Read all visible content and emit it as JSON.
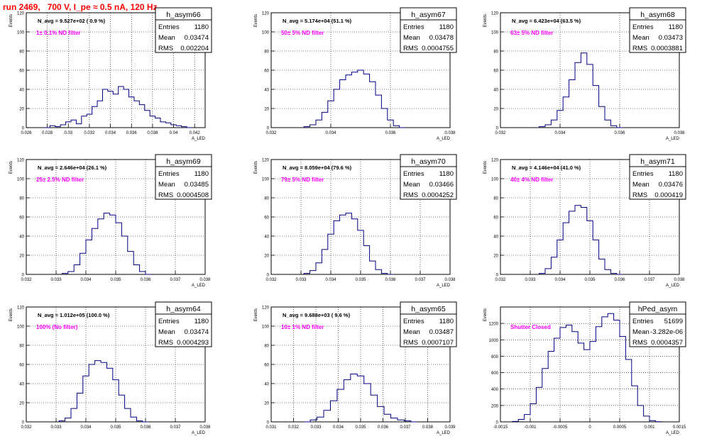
{
  "page_title": "run 2469,   700 V, I_pe ≈ 0.5 nA, 120 Hz",
  "colors": {
    "hist": "#000080",
    "annot": "#ff00ff",
    "title": "#ff0000",
    "grid": "#000000"
  },
  "y_axis_label": "Events",
  "x_axis_label": "A_LED",
  "stats_labels": {
    "entries": "Entries",
    "mean": "Mean",
    "rms": "RMS"
  },
  "chart_data": [
    {
      "type": "histogram",
      "name": "h_asym66",
      "navg": "N_avg = 9.527e+02 ( 0.9 %)",
      "note": "1± 0.1% ND filter",
      "entries": "1180",
      "mean": "0.03474",
      "rms": "0.002204",
      "xlim": [
        0.026,
        0.043
      ],
      "ylim": [
        0,
        120
      ],
      "xticks": [
        "0.026",
        "0.028",
        "0.03",
        "0.032",
        "0.034",
        "0.036",
        "0.038",
        "0.04",
        "0.042"
      ],
      "xtick_values": [
        0.026,
        0.028,
        0.03,
        0.032,
        0.034,
        0.036,
        0.038,
        0.04,
        0.042
      ],
      "yticks": [
        0,
        20,
        40,
        60,
        80,
        100,
        120
      ],
      "bins": [
        [
          0.028,
          0
        ],
        [
          0.0285,
          2
        ],
        [
          0.029,
          1
        ],
        [
          0.0295,
          3
        ],
        [
          0.03,
          6
        ],
        [
          0.0305,
          8
        ],
        [
          0.031,
          4
        ],
        [
          0.0315,
          12
        ],
        [
          0.032,
          14
        ],
        [
          0.0325,
          22
        ],
        [
          0.033,
          28
        ],
        [
          0.0335,
          40
        ],
        [
          0.034,
          38
        ],
        [
          0.0345,
          35
        ],
        [
          0.035,
          43
        ],
        [
          0.0355,
          40
        ],
        [
          0.036,
          32
        ],
        [
          0.0365,
          28
        ],
        [
          0.037,
          24
        ],
        [
          0.0375,
          18
        ],
        [
          0.038,
          12
        ],
        [
          0.0385,
          10
        ],
        [
          0.039,
          6
        ],
        [
          0.0395,
          5
        ],
        [
          0.04,
          3
        ],
        [
          0.0405,
          2
        ],
        [
          0.041,
          1
        ],
        [
          0.0415,
          0
        ]
      ]
    },
    {
      "type": "histogram",
      "name": "h_asym67",
      "navg": "N_avg = 5.174e+04 (51.1 %)",
      "note": "50± 5% ND filter",
      "entries": "1180",
      "mean": "0.03478",
      "rms": "0.0004755",
      "xlim": [
        0.032,
        0.038
      ],
      "ylim": [
        0,
        120
      ],
      "xticks": [
        "0.032",
        "0.034",
        "0.036",
        "0.038"
      ],
      "xtick_values": [
        0.032,
        0.034,
        0.036,
        0.038
      ],
      "yticks": [
        0,
        20,
        40,
        60,
        80,
        100,
        120
      ],
      "bins": [
        [
          0.0332,
          1
        ],
        [
          0.0334,
          3
        ],
        [
          0.0336,
          8
        ],
        [
          0.0338,
          16
        ],
        [
          0.034,
          28
        ],
        [
          0.0342,
          40
        ],
        [
          0.0344,
          50
        ],
        [
          0.0346,
          55
        ],
        [
          0.0348,
          58
        ],
        [
          0.035,
          60
        ],
        [
          0.0352,
          56
        ],
        [
          0.0354,
          48
        ],
        [
          0.0356,
          34
        ],
        [
          0.0358,
          20
        ],
        [
          0.036,
          8
        ],
        [
          0.0362,
          2
        ],
        [
          0.0364,
          0
        ]
      ]
    },
    {
      "type": "histogram",
      "name": "h_asym68",
      "navg": "N_avg = 6.423e+04 (63.5 %)",
      "note": "63± 5% ND filter",
      "entries": "1180",
      "mean": "0.03473",
      "rms": "0.0003881",
      "xlim": [
        0.032,
        0.038
      ],
      "ylim": [
        0,
        120
      ],
      "xticks": [
        "0.032",
        "0.034",
        "0.036",
        "0.038"
      ],
      "xtick_values": [
        0.032,
        0.034,
        0.036,
        0.038
      ],
      "yticks": [
        0,
        20,
        40,
        60,
        80,
        100,
        120
      ],
      "bins": [
        [
          0.0334,
          1
        ],
        [
          0.0336,
          3
        ],
        [
          0.0338,
          8
        ],
        [
          0.034,
          18
        ],
        [
          0.0342,
          32
        ],
        [
          0.0344,
          50
        ],
        [
          0.0346,
          68
        ],
        [
          0.0348,
          78
        ],
        [
          0.035,
          66
        ],
        [
          0.0352,
          44
        ],
        [
          0.0354,
          22
        ],
        [
          0.0356,
          8
        ],
        [
          0.0358,
          2
        ],
        [
          0.036,
          0
        ]
      ]
    },
    {
      "type": "histogram",
      "name": "h_asym69",
      "navg": "N_avg = 2.646e+04 (26.1 %)",
      "note": "25± 2.5% ND filter",
      "entries": "1180",
      "mean": "0.03485",
      "rms": "0.0004508",
      "xlim": [
        0.032,
        0.038
      ],
      "ylim": [
        0,
        120
      ],
      "xticks": [
        "0.032",
        "0.033",
        "0.034",
        "0.035",
        "0.036",
        "0.037",
        "0.038"
      ],
      "xtick_values": [
        0.032,
        0.033,
        0.034,
        0.035,
        0.036,
        0.037,
        0.038
      ],
      "yticks": [
        0,
        20,
        40,
        60,
        80,
        100,
        120
      ],
      "bins": [
        [
          0.0333,
          1
        ],
        [
          0.0335,
          3
        ],
        [
          0.0337,
          10
        ],
        [
          0.0339,
          22
        ],
        [
          0.0341,
          36
        ],
        [
          0.0343,
          48
        ],
        [
          0.0345,
          58
        ],
        [
          0.0347,
          64
        ],
        [
          0.0349,
          62
        ],
        [
          0.0351,
          54
        ],
        [
          0.0353,
          40
        ],
        [
          0.0355,
          24
        ],
        [
          0.0357,
          10
        ],
        [
          0.0359,
          3
        ],
        [
          0.0361,
          0
        ]
      ]
    },
    {
      "type": "histogram",
      "name": "h_asym70",
      "navg": "N_avg = 8.059e+04 (79.6 %)",
      "note": "79± 5% ND filter",
      "entries": "1180",
      "mean": "0.03466",
      "rms": "0.0004252",
      "xlim": [
        0.032,
        0.038
      ],
      "ylim": [
        0,
        120
      ],
      "xticks": [
        "0.032",
        "0.033",
        "0.034",
        "0.035",
        "0.036",
        "0.037",
        "0.038"
      ],
      "xtick_values": [
        0.032,
        0.033,
        0.034,
        0.035,
        0.036,
        0.037,
        0.038
      ],
      "yticks": [
        0,
        20,
        40,
        60,
        80,
        100,
        120
      ],
      "bins": [
        [
          0.0332,
          1
        ],
        [
          0.0334,
          4
        ],
        [
          0.0336,
          12
        ],
        [
          0.0338,
          26
        ],
        [
          0.034,
          42
        ],
        [
          0.0342,
          56
        ],
        [
          0.0344,
          62
        ],
        [
          0.0346,
          64
        ],
        [
          0.0348,
          58
        ],
        [
          0.035,
          46
        ],
        [
          0.0352,
          30
        ],
        [
          0.0354,
          14
        ],
        [
          0.0356,
          5
        ],
        [
          0.0358,
          1
        ],
        [
          0.036,
          0
        ]
      ]
    },
    {
      "type": "histogram",
      "name": "h_asym71",
      "navg": "N_avg = 4.146e+04 (41.0 %)",
      "note": "40± 4% ND filter",
      "entries": "1180",
      "mean": "0.03476",
      "rms": "0.000419",
      "xlim": [
        0.032,
        0.038
      ],
      "ylim": [
        0,
        120
      ],
      "xticks": [
        "0.032",
        "0.033",
        "0.034",
        "0.035",
        "0.036",
        "0.037",
        "0.038"
      ],
      "xtick_values": [
        0.032,
        0.033,
        0.034,
        0.035,
        0.036,
        0.037,
        0.038
      ],
      "yticks": [
        0,
        20,
        40,
        60,
        80,
        100,
        120
      ],
      "bins": [
        [
          0.0334,
          1
        ],
        [
          0.0336,
          6
        ],
        [
          0.0338,
          18
        ],
        [
          0.034,
          36
        ],
        [
          0.0342,
          54
        ],
        [
          0.0344,
          66
        ],
        [
          0.0346,
          72
        ],
        [
          0.0348,
          70
        ],
        [
          0.035,
          56
        ],
        [
          0.0352,
          36
        ],
        [
          0.0354,
          16
        ],
        [
          0.0356,
          5
        ],
        [
          0.0358,
          1
        ],
        [
          0.036,
          0
        ]
      ]
    },
    {
      "type": "histogram",
      "name": "h_asym64",
      "navg": "N_avg = 1.012e+05 (100.0 %)",
      "note": "100% (No filter)",
      "entries": "1180",
      "mean": "0.03474",
      "rms": "0.0004293",
      "xlim": [
        0.032,
        0.038
      ],
      "ylim": [
        0,
        120
      ],
      "xticks": [
        "0.032",
        "0.033",
        "0.034",
        "0.035",
        "0.036",
        "0.037",
        "0.038"
      ],
      "xtick_values": [
        0.032,
        0.033,
        0.034,
        0.035,
        0.036,
        0.037,
        0.038
      ],
      "yticks": [
        0,
        20,
        40,
        60,
        80,
        100,
        120
      ],
      "bins": [
        [
          0.0332,
          1
        ],
        [
          0.0334,
          4
        ],
        [
          0.0336,
          14
        ],
        [
          0.0338,
          30
        ],
        [
          0.034,
          48
        ],
        [
          0.0342,
          60
        ],
        [
          0.0344,
          64
        ],
        [
          0.0346,
          62
        ],
        [
          0.0348,
          56
        ],
        [
          0.035,
          44
        ],
        [
          0.0352,
          28
        ],
        [
          0.0354,
          14
        ],
        [
          0.0356,
          5
        ],
        [
          0.0358,
          1
        ],
        [
          0.036,
          0
        ]
      ]
    },
    {
      "type": "histogram",
      "name": "h_asym65",
      "navg": "N_avg = 9.688e+03 ( 9.6 %)",
      "note": "10± 1% ND filter",
      "entries": "1180",
      "mean": "0.03487",
      "rms": "0.0007107",
      "xlim": [
        0.031,
        0.039
      ],
      "ylim": [
        0,
        120
      ],
      "xticks": [
        "0.031",
        "0.032",
        "0.033",
        "0.034",
        "0.035",
        "0.036",
        "0.037",
        "0.038",
        "0.039"
      ],
      "xtick_values": [
        0.031,
        0.032,
        0.033,
        0.034,
        0.035,
        0.036,
        0.037,
        0.038,
        0.039
      ],
      "yticks": [
        0,
        20,
        40,
        60,
        80,
        100,
        120
      ],
      "bins": [
        [
          0.0326,
          0
        ],
        [
          0.0329,
          2
        ],
        [
          0.0332,
          5
        ],
        [
          0.0335,
          12
        ],
        [
          0.0338,
          22
        ],
        [
          0.0341,
          34
        ],
        [
          0.0344,
          44
        ],
        [
          0.0347,
          50
        ],
        [
          0.035,
          48
        ],
        [
          0.0353,
          40
        ],
        [
          0.0356,
          28
        ],
        [
          0.0359,
          16
        ],
        [
          0.0362,
          8
        ],
        [
          0.0365,
          4
        ],
        [
          0.0368,
          2
        ],
        [
          0.0371,
          1
        ],
        [
          0.0374,
          0
        ]
      ]
    },
    {
      "type": "histogram",
      "name": "hPed_asym",
      "navg": "",
      "note": "Shutter Closed",
      "entries": "51699",
      "mean": "-3.282e-06",
      "rms": "0.0004357",
      "xlim": [
        -0.0015,
        0.0015
      ],
      "ylim": [
        0,
        1400
      ],
      "xticks": [
        "-0.0015",
        "-0.001",
        "-0.0005",
        "0",
        "0.0005",
        "0.001",
        "0.0015"
      ],
      "xtick_values": [
        -0.0015,
        -0.001,
        -0.0005,
        0,
        0.0005,
        0.001,
        0.0015
      ],
      "yticks": [
        0,
        200,
        400,
        600,
        800,
        1000,
        1200
      ],
      "bins": [
        [
          -0.00125,
          5
        ],
        [
          -0.00115,
          30
        ],
        [
          -0.00105,
          90
        ],
        [
          -0.00095,
          220
        ],
        [
          -0.00085,
          420
        ],
        [
          -0.00075,
          650
        ],
        [
          -0.00065,
          860
        ],
        [
          -0.00055,
          1020
        ],
        [
          -0.00045,
          1150
        ],
        [
          -0.00035,
          1180
        ],
        [
          -0.00025,
          1100
        ],
        [
          -0.00015,
          960
        ],
        [
          -5e-05,
          880
        ],
        [
          5e-05,
          980
        ],
        [
          0.00015,
          1160
        ],
        [
          0.00025,
          1280
        ],
        [
          0.00035,
          1320
        ],
        [
          0.00045,
          1240
        ],
        [
          0.00055,
          1040
        ],
        [
          0.00065,
          760
        ],
        [
          0.00075,
          440
        ],
        [
          0.00085,
          200
        ],
        [
          0.00095,
          70
        ],
        [
          0.00105,
          15
        ],
        [
          0.00115,
          2
        ]
      ]
    }
  ]
}
